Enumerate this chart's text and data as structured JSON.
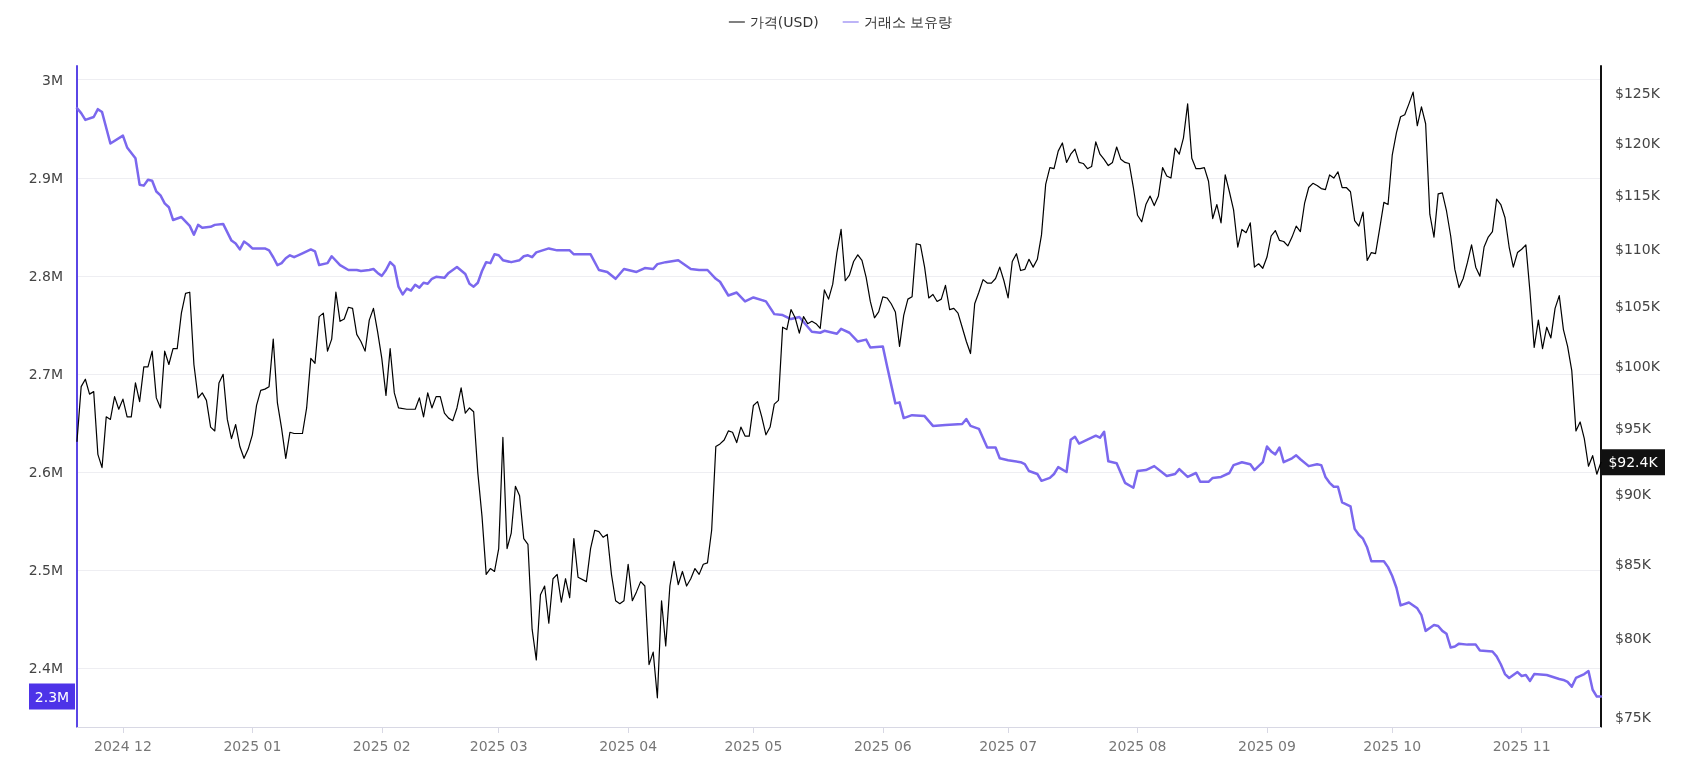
{
  "chart_data": {
    "type": "line",
    "xlim": [
      "2024-11-20",
      "2025-11-20"
    ],
    "xticks": [
      {
        "value": "2024-12-01",
        "label": "2024 12"
      },
      {
        "value": "2025-01-01",
        "label": "2025 01"
      },
      {
        "value": "2025-02-01",
        "label": "2025 02"
      },
      {
        "value": "2025-03-01",
        "label": "2025 03"
      },
      {
        "value": "2025-04-01",
        "label": "2025 04"
      },
      {
        "value": "2025-05-01",
        "label": "2025 05"
      },
      {
        "value": "2025-06-01",
        "label": "2025 06"
      },
      {
        "value": "2025-07-01",
        "label": "2025 07"
      },
      {
        "value": "2025-08-01",
        "label": "2025 08"
      },
      {
        "value": "2025-09-01",
        "label": "2025 09"
      },
      {
        "value": "2025-10-01",
        "label": "2025 10"
      },
      {
        "value": "2025-11-01",
        "label": "2025 11"
      }
    ],
    "ylim": [
      2340000,
      3014000
    ],
    "yticks": [
      {
        "value": 2400000,
        "label": "2.4M"
      },
      {
        "value": 2500000,
        "label": "2.5M"
      },
      {
        "value": 2600000,
        "label": "2.6M"
      },
      {
        "value": 2700000,
        "label": "2.7M"
      },
      {
        "value": 2800000,
        "label": "2.8M"
      },
      {
        "value": 2900000,
        "label": "2.9M"
      },
      {
        "value": 3000000,
        "label": "3M"
      }
    ],
    "y2lim": [
      74400,
      127800
    ],
    "y2ticks": [
      {
        "value": 75000,
        "label": "$75K"
      },
      {
        "value": 80000,
        "label": "$80K"
      },
      {
        "value": 85000,
        "label": "$85K"
      },
      {
        "value": 90000,
        "label": "$90K"
      },
      {
        "value": 95000,
        "label": "$95K"
      },
      {
        "value": 100000,
        "label": "$100K"
      },
      {
        "value": 105000,
        "label": "$105K"
      },
      {
        "value": 110000,
        "label": "$110K"
      },
      {
        "value": 115000,
        "label": "$115K"
      },
      {
        "value": 120000,
        "label": "$120K"
      },
      {
        "value": 125000,
        "label": "$125K"
      }
    ],
    "log": "y2",
    "grid": "y",
    "legend": "top",
    "marker": "none",
    "line_style": "solid",
    "annotations": [
      "2.3M",
      "$92.4K"
    ],
    "series": [
      {
        "name": "가격(USD)",
        "color": "#000000",
        "axis": "y2",
        "x": [
          "2024-11-20",
          "2024-11-21",
          "2024-11-22",
          "2024-11-23",
          "2024-11-24",
          "2024-11-25",
          "2024-11-26",
          "2024-11-27",
          "2024-11-28",
          "2024-11-29",
          "2024-11-30",
          "2024-12-01",
          "2024-12-02",
          "2024-12-03",
          "2024-12-04",
          "2024-12-05",
          "2024-12-06",
          "2024-12-07",
          "2024-12-08",
          "2024-12-09",
          "2024-12-10",
          "2024-12-11",
          "2024-12-12",
          "2024-12-13",
          "2024-12-14",
          "2024-12-15",
          "2024-12-16",
          "2024-12-17",
          "2024-12-18",
          "2024-12-19",
          "2024-12-20",
          "2024-12-21",
          "2024-12-22",
          "2024-12-23",
          "2024-12-24",
          "2024-12-25",
          "2024-12-26",
          "2024-12-27",
          "2024-12-28",
          "2024-12-29",
          "2024-12-30",
          "2024-12-31",
          "2025-01-01",
          "2025-01-02",
          "2025-01-03",
          "2025-01-04",
          "2025-01-05",
          "2025-01-06",
          "2025-01-07",
          "2025-01-08",
          "2025-01-09",
          "2025-01-10",
          "2025-01-11",
          "2025-01-12",
          "2025-01-13",
          "2025-01-14",
          "2025-01-15",
          "2025-01-16",
          "2025-01-17",
          "2025-01-18",
          "2025-01-19",
          "2025-01-20",
          "2025-01-21",
          "2025-01-22",
          "2025-01-23",
          "2025-01-24",
          "2025-01-25",
          "2025-01-26",
          "2025-01-27",
          "2025-01-28",
          "2025-01-29",
          "2025-01-30",
          "2025-01-31",
          "2025-02-01",
          "2025-02-02",
          "2025-02-03",
          "2025-02-04",
          "2025-02-05",
          "2025-02-07",
          "2025-02-09",
          "2025-02-10",
          "2025-02-11",
          "2025-02-12",
          "2025-02-13",
          "2025-02-14",
          "2025-02-15",
          "2025-02-16",
          "2025-02-17",
          "2025-02-18",
          "2025-02-19",
          "2025-02-20",
          "2025-02-21",
          "2025-02-22",
          "2025-02-23",
          "2025-02-24",
          "2025-02-25",
          "2025-02-26",
          "2025-02-27",
          "2025-02-28",
          "2025-03-01",
          "2025-03-02",
          "2025-03-03",
          "2025-03-04",
          "2025-03-05",
          "2025-03-06",
          "2025-03-07",
          "2025-03-08",
          "2025-03-09",
          "2025-03-10",
          "2025-03-11",
          "2025-03-12",
          "2025-03-13",
          "2025-03-14",
          "2025-03-15",
          "2025-03-16",
          "2025-03-17",
          "2025-03-18",
          "2025-03-19",
          "2025-03-20",
          "2025-03-22",
          "2025-03-23",
          "2025-03-24",
          "2025-03-25",
          "2025-03-26",
          "2025-03-27",
          "2025-03-28",
          "2025-03-29",
          "2025-03-30",
          "2025-03-31",
          "2025-04-01",
          "2025-04-02",
          "2025-04-03",
          "2025-04-04",
          "2025-04-05",
          "2025-04-06",
          "2025-04-07",
          "2025-04-08",
          "2025-04-09",
          "2025-04-10",
          "2025-04-11",
          "2025-04-12",
          "2025-04-13",
          "2025-04-14",
          "2025-04-15",
          "2025-04-16",
          "2025-04-17",
          "2025-04-18",
          "2025-04-19",
          "2025-04-20",
          "2025-04-21",
          "2025-04-22",
          "2025-04-23",
          "2025-04-24",
          "2025-04-25",
          "2025-04-26",
          "2025-04-27",
          "2025-04-28",
          "2025-04-29",
          "2025-04-30",
          "2025-05-01",
          "2025-05-02",
          "2025-05-03",
          "2025-05-04",
          "2025-05-05",
          "2025-05-06",
          "2025-05-07",
          "2025-05-08",
          "2025-05-09",
          "2025-05-10",
          "2025-05-11",
          "2025-05-12",
          "2025-05-13",
          "2025-05-14",
          "2025-05-15",
          "2025-05-16",
          "2025-05-17",
          "2025-05-18",
          "2025-05-19",
          "2025-05-20",
          "2025-05-21",
          "2025-05-22",
          "2025-05-23",
          "2025-05-24",
          "2025-05-25",
          "2025-05-26",
          "2025-05-27",
          "2025-05-28",
          "2025-05-29",
          "2025-05-30",
          "2025-05-31",
          "2025-06-01",
          "2025-06-02",
          "2025-06-03",
          "2025-06-04",
          "2025-06-05",
          "2025-06-06",
          "2025-06-07",
          "2025-06-08",
          "2025-06-09",
          "2025-06-10",
          "2025-06-11",
          "2025-06-12",
          "2025-06-13",
          "2025-06-14",
          "2025-06-15",
          "2025-06-16",
          "2025-06-17",
          "2025-06-18",
          "2025-06-19",
          "2025-06-20",
          "2025-06-21",
          "2025-06-22",
          "2025-06-23",
          "2025-06-24",
          "2025-06-25",
          "2025-06-26",
          "2025-06-27",
          "2025-06-28",
          "2025-06-29",
          "2025-06-30",
          "2025-07-01",
          "2025-07-02",
          "2025-07-03",
          "2025-07-04",
          "2025-07-05",
          "2025-07-06",
          "2025-07-07",
          "2025-07-08",
          "2025-07-09",
          "2025-07-10",
          "2025-07-11",
          "2025-07-12",
          "2025-07-13",
          "2025-07-14",
          "2025-07-15",
          "2025-07-16",
          "2025-07-17",
          "2025-07-18",
          "2025-07-19",
          "2025-07-20",
          "2025-07-21",
          "2025-07-22",
          "2025-07-23",
          "2025-07-24",
          "2025-07-25",
          "2025-07-26",
          "2025-07-27",
          "2025-07-28",
          "2025-07-29",
          "2025-07-30",
          "2025-07-31",
          "2025-08-01",
          "2025-08-02",
          "2025-08-03",
          "2025-08-04",
          "2025-08-05",
          "2025-08-06",
          "2025-08-07",
          "2025-08-08",
          "2025-08-09",
          "2025-08-10",
          "2025-08-11",
          "2025-08-12",
          "2025-08-13",
          "2025-08-14",
          "2025-08-15",
          "2025-08-16",
          "2025-08-17",
          "2025-08-18",
          "2025-08-19",
          "2025-08-20",
          "2025-08-21",
          "2025-08-22",
          "2025-08-23",
          "2025-08-24",
          "2025-08-25",
          "2025-08-26",
          "2025-08-27",
          "2025-08-28",
          "2025-08-29",
          "2025-08-30",
          "2025-08-31",
          "2025-09-01",
          "2025-09-02",
          "2025-09-03",
          "2025-09-04",
          "2025-09-05",
          "2025-09-06",
          "2025-09-07",
          "2025-09-08",
          "2025-09-09",
          "2025-09-10",
          "2025-09-11",
          "2025-09-12",
          "2025-09-13",
          "2025-09-14",
          "2025-09-15",
          "2025-09-16",
          "2025-09-17",
          "2025-09-18",
          "2025-09-19",
          "2025-09-20",
          "2025-09-21",
          "2025-09-22",
          "2025-09-23",
          "2025-09-24",
          "2025-09-25",
          "2025-09-26",
          "2025-09-27",
          "2025-09-28",
          "2025-09-29",
          "2025-09-30",
          "2025-10-01",
          "2025-10-02",
          "2025-10-03",
          "2025-10-04",
          "2025-10-05",
          "2025-10-06",
          "2025-10-07",
          "2025-10-08",
          "2025-10-09",
          "2025-10-10",
          "2025-10-11",
          "2025-10-12",
          "2025-10-13",
          "2025-10-14",
          "2025-10-15",
          "2025-10-16",
          "2025-10-17",
          "2025-10-18",
          "2025-10-19",
          "2025-10-20",
          "2025-10-21",
          "2025-10-22",
          "2025-10-23",
          "2025-10-24",
          "2025-10-25",
          "2025-10-26",
          "2025-10-27",
          "2025-10-28",
          "2025-10-29",
          "2025-10-30",
          "2025-10-31",
          "2025-11-01",
          "2025-11-02",
          "2025-11-03",
          "2025-11-04",
          "2025-11-05",
          "2025-11-06",
          "2025-11-07",
          "2025-11-08",
          "2025-11-09",
          "2025-11-10",
          "2025-11-11",
          "2025-11-12",
          "2025-11-13",
          "2025-11-14",
          "2025-11-15",
          "2025-11-16",
          "2025-11-17",
          "2025-11-18",
          "2025-11-19",
          "2025-11-20"
        ],
        "values": [
          94000,
          98300,
          98900,
          97700,
          97900,
          93000,
          92000,
          95900,
          95700,
          97500,
          96500,
          97300,
          95900,
          95900,
          98600,
          97100,
          99900,
          99900,
          101200,
          97400,
          96600,
          101200,
          100100,
          101400,
          101400,
          104400,
          106100,
          106200,
          100100,
          97400,
          97800,
          97200,
          95100,
          94800,
          98600,
          99300,
          95700,
          94200,
          95300,
          93600,
          92700,
          93400,
          94500,
          96800,
          98000,
          98100,
          98300,
          102200,
          97000,
          95000,
          92700,
          94700,
          94600,
          94600,
          94600,
          96600,
          100600,
          100200,
          104100,
          104400,
          101200,
          102200,
          106200,
          103700,
          103900,
          104900,
          104800,
          102600,
          102000,
          101200,
          103800,
          104800,
          102800,
          100600,
          97600,
          101400,
          97800,
          96600,
          96500,
          96500,
          97400,
          95900,
          97800,
          96600,
          97500,
          97500,
          96200,
          95800,
          95600,
          96600,
          98200,
          96200,
          96600,
          96300,
          91600,
          88400,
          84300,
          84700,
          84500,
          86100,
          94300,
          86100,
          87200,
          90600,
          89900,
          86800,
          86400,
          80600,
          78600,
          82900,
          83500,
          81000,
          84000,
          84300,
          82400,
          84000,
          82700,
          86800,
          84100,
          83800,
          86100,
          87400,
          87300,
          86900,
          87100,
          84300,
          82500,
          82300,
          82500,
          85000,
          82500,
          83100,
          83800,
          83500,
          78300,
          79100,
          76200,
          82500,
          79500,
          83500,
          85200,
          83600,
          84500,
          83500,
          84000,
          84700,
          84300,
          85000,
          85100,
          87400,
          93600,
          93800,
          94100,
          94800,
          94700,
          93900,
          95100,
          94400,
          94400,
          96800,
          97100,
          95900,
          94500,
          95100,
          96900,
          97200,
          103200,
          103000,
          104700,
          104000,
          102700,
          104100,
          103500,
          103700,
          103500,
          103100,
          106400,
          105600,
          106900,
          109700,
          111800,
          107200,
          107700,
          108900,
          109500,
          109000,
          107500,
          105400,
          104000,
          104500,
          105800,
          105700,
          105200,
          104500,
          101600,
          104200,
          105600,
          105800,
          110500,
          110400,
          108400,
          105700,
          106000,
          105400,
          105600,
          106800,
          104700,
          104800,
          104400,
          103200,
          102000,
          101000,
          105200,
          106200,
          107300,
          107000,
          107000,
          107400,
          108400,
          107200,
          105700,
          108900,
          109600,
          108100,
          108200,
          109100,
          108400,
          109100,
          111300,
          116000,
          117600,
          117500,
          119200,
          120000,
          118100,
          118900,
          119400,
          118100,
          118000,
          117500,
          117700,
          120100,
          118900,
          118400,
          117800,
          118100,
          119600,
          118400,
          118100,
          118000,
          115700,
          113100,
          112500,
          114100,
          114900,
          114000,
          114900,
          117600,
          116800,
          116600,
          119500,
          118900,
          120500,
          123900,
          118500,
          117500,
          117500,
          117600,
          116300,
          112800,
          114100,
          112400,
          116900,
          115300,
          113600,
          110200,
          111800,
          111500,
          112400,
          108400,
          108700,
          108300,
          109300,
          111200,
          111700,
          110800,
          110700,
          110300,
          111100,
          112100,
          111600,
          114200,
          115700,
          116100,
          115900,
          115600,
          115500,
          116900,
          116600,
          117200,
          115700,
          115700,
          115300,
          112600,
          112100,
          113400,
          109000,
          109700,
          109600,
          111900,
          114300,
          114100,
          118800,
          121000,
          122600,
          122800,
          123900,
          125100,
          121700,
          123600,
          121900,
          113200,
          111100,
          115100,
          115200,
          113500,
          111200,
          108200,
          106600,
          107400,
          108800,
          110400,
          108400,
          107600,
          110200,
          111100,
          111600,
          114600,
          114100,
          112900,
          110200,
          108400,
          109700,
          110000,
          110400,
          106200,
          101500,
          103800,
          101400,
          103200,
          102300,
          104800,
          105900,
          103000,
          101600,
          99600,
          94800,
          95500,
          94200,
          92100,
          92900,
          91500,
          92400
        ]
      },
      {
        "name": "거래소 보유량",
        "color": "#7b68ee",
        "axis": "y",
        "x": [
          "2024-11-20",
          "2024-11-21",
          "2024-11-22",
          "2024-11-24",
          "2024-11-25",
          "2024-11-26",
          "2024-11-28",
          "2024-12-01",
          "2024-12-02",
          "2024-12-04",
          "2024-12-05",
          "2024-12-06",
          "2024-12-07",
          "2024-12-08",
          "2024-12-09",
          "2024-12-10",
          "2024-12-11",
          "2024-12-12",
          "2024-12-13",
          "2024-12-15",
          "2024-12-17",
          "2024-12-18",
          "2024-12-19",
          "2024-12-20",
          "2024-12-22",
          "2024-12-23",
          "2024-12-25",
          "2024-12-27",
          "2024-12-28",
          "2024-12-29",
          "2024-12-30",
          "2024-12-31",
          "2025-01-01",
          "2025-01-04",
          "2025-01-05",
          "2025-01-06",
          "2025-01-07",
          "2025-01-08",
          "2025-01-09",
          "2025-01-10",
          "2025-01-11",
          "2025-01-13",
          "2025-01-15",
          "2025-01-16",
          "2025-01-17",
          "2025-01-19",
          "2025-01-20",
          "2025-01-22",
          "2025-01-24",
          "2025-01-26",
          "2025-01-27",
          "2025-01-29",
          "2025-01-30",
          "2025-01-31",
          "2025-02-01",
          "2025-02-02",
          "2025-02-03",
          "2025-02-04",
          "2025-02-05",
          "2025-02-06",
          "2025-02-07",
          "2025-02-08",
          "2025-02-09",
          "2025-02-10",
          "2025-02-11",
          "2025-02-12",
          "2025-02-13",
          "2025-02-14",
          "2025-02-16",
          "2025-02-17",
          "2025-02-19",
          "2025-02-21",
          "2025-02-22",
          "2025-02-23",
          "2025-02-24",
          "2025-02-25",
          "2025-02-26",
          "2025-02-27",
          "2025-02-28",
          "2025-03-01",
          "2025-03-02",
          "2025-03-04",
          "2025-03-06",
          "2025-03-07",
          "2025-03-08",
          "2025-03-09",
          "2025-03-10",
          "2025-03-13",
          "2025-03-15",
          "2025-03-18",
          "2025-03-19",
          "2025-03-23",
          "2025-03-25",
          "2025-03-27",
          "2025-03-29",
          "2025-03-31",
          "2025-04-03",
          "2025-04-05",
          "2025-04-07",
          "2025-04-08",
          "2025-04-10",
          "2025-04-13",
          "2025-04-16",
          "2025-04-18",
          "2025-04-20",
          "2025-04-22",
          "2025-04-23",
          "2025-04-25",
          "2025-04-27",
          "2025-04-29",
          "2025-05-01",
          "2025-05-04",
          "2025-05-06",
          "2025-05-08",
          "2025-05-10",
          "2025-05-12",
          "2025-05-15",
          "2025-05-17",
          "2025-05-18",
          "2025-05-21",
          "2025-05-22",
          "2025-05-24",
          "2025-05-26",
          "2025-05-28",
          "2025-05-29",
          "2025-06-01",
          "2025-06-02",
          "2025-06-04",
          "2025-06-05",
          "2025-06-06",
          "2025-06-08",
          "2025-06-11",
          "2025-06-13",
          "2025-06-16",
          "2025-06-20",
          "2025-06-21",
          "2025-06-22",
          "2025-06-24",
          "2025-06-26",
          "2025-06-28",
          "2025-06-29",
          "2025-07-01",
          "2025-07-04",
          "2025-07-05",
          "2025-07-06",
          "2025-07-08",
          "2025-07-09",
          "2025-07-11",
          "2025-07-12",
          "2025-07-13",
          "2025-07-15",
          "2025-07-16",
          "2025-07-17",
          "2025-07-18",
          "2025-07-20",
          "2025-07-22",
          "2025-07-23",
          "2025-07-24",
          "2025-07-25",
          "2025-07-27",
          "2025-07-29",
          "2025-07-31",
          "2025-08-01",
          "2025-08-03",
          "2025-08-05",
          "2025-08-08",
          "2025-08-10",
          "2025-08-11",
          "2025-08-13",
          "2025-08-15",
          "2025-08-16",
          "2025-08-18",
          "2025-08-19",
          "2025-08-21",
          "2025-08-23",
          "2025-08-24",
          "2025-08-26",
          "2025-08-28",
          "2025-08-29",
          "2025-08-31",
          "2025-09-01",
          "2025-09-02",
          "2025-09-03",
          "2025-09-04",
          "2025-09-05",
          "2025-09-07",
          "2025-09-08",
          "2025-09-09",
          "2025-09-11",
          "2025-09-13",
          "2025-09-14",
          "2025-09-15",
          "2025-09-16",
          "2025-09-17",
          "2025-09-18",
          "2025-09-19",
          "2025-09-21",
          "2025-09-22",
          "2025-09-23",
          "2025-09-24",
          "2025-09-25",
          "2025-09-26",
          "2025-09-29",
          "2025-09-30",
          "2025-10-01",
          "2025-10-02",
          "2025-10-03",
          "2025-10-05",
          "2025-10-07",
          "2025-10-08",
          "2025-10-09",
          "2025-10-10",
          "2025-10-11",
          "2025-10-12",
          "2025-10-13",
          "2025-10-14",
          "2025-10-15",
          "2025-10-16",
          "2025-10-17",
          "2025-10-19",
          "2025-10-21",
          "2025-10-22",
          "2025-10-25",
          "2025-10-26",
          "2025-10-27",
          "2025-10-28",
          "2025-10-29",
          "2025-10-31",
          "2025-11-01",
          "2025-11-02",
          "2025-11-03",
          "2025-11-04",
          "2025-11-07",
          "2025-11-10",
          "2025-11-11",
          "2025-11-12",
          "2025-11-13",
          "2025-11-14",
          "2025-11-16",
          "2025-11-17",
          "2025-11-18",
          "2025-11-19",
          "2025-11-20"
        ],
        "values": [
          2971000,
          2966000,
          2959000,
          2962000,
          2970000,
          2967000,
          2935000,
          2943000,
          2931000,
          2920000,
          2893000,
          2892000,
          2898000,
          2897000,
          2886000,
          2882000,
          2874000,
          2870000,
          2857000,
          2860000,
          2851000,
          2842000,
          2852000,
          2849000,
          2850000,
          2852000,
          2853000,
          2836000,
          2833000,
          2827000,
          2835000,
          2832000,
          2828000,
          2828000,
          2826000,
          2819000,
          2811000,
          2813000,
          2818000,
          2821000,
          2819000,
          2823000,
          2827000,
          2825000,
          2811000,
          2813000,
          2820000,
          2811000,
          2806000,
          2806000,
          2805000,
          2806000,
          2807000,
          2803000,
          2800000,
          2806000,
          2814000,
          2810000,
          2789000,
          2781000,
          2787000,
          2785000,
          2791000,
          2788000,
          2793000,
          2792000,
          2797000,
          2799000,
          2798000,
          2803000,
          2809000,
          2802000,
          2792000,
          2789000,
          2793000,
          2805000,
          2814000,
          2813000,
          2822000,
          2821000,
          2816000,
          2814000,
          2816000,
          2820000,
          2821000,
          2819000,
          2824000,
          2828000,
          2826000,
          2826000,
          2822000,
          2822000,
          2806000,
          2804000,
          2797000,
          2807000,
          2804000,
          2808000,
          2807000,
          2812000,
          2814000,
          2816000,
          2807000,
          2806000,
          2806000,
          2797000,
          2794000,
          2780000,
          2783000,
          2774000,
          2778000,
          2774000,
          2761000,
          2760000,
          2756000,
          2758000,
          2743000,
          2742000,
          2744000,
          2741000,
          2746000,
          2742000,
          2733000,
          2735000,
          2727000,
          2728000,
          2708000,
          2670000,
          2671000,
          2655000,
          2658000,
          2657000,
          2647000,
          2648000,
          2649000,
          2654000,
          2647000,
          2644000,
          2625000,
          2625000,
          2614000,
          2612000,
          2610000,
          2608000,
          2601000,
          2598000,
          2591000,
          2594000,
          2598000,
          2605000,
          2600000,
          2633000,
          2636000,
          2629000,
          2633000,
          2637000,
          2635000,
          2641000,
          2611000,
          2609000,
          2589000,
          2584000,
          2601000,
          2602000,
          2606000,
          2596000,
          2598000,
          2603000,
          2595000,
          2599000,
          2590000,
          2590000,
          2594000,
          2595000,
          2599000,
          2607000,
          2610000,
          2608000,
          2602000,
          2610000,
          2626000,
          2621000,
          2618000,
          2625000,
          2610000,
          2614000,
          2617000,
          2613000,
          2606000,
          2608000,
          2607000,
          2595000,
          2589000,
          2585000,
          2585000,
          2569000,
          2565000,
          2542000,
          2536000,
          2532000,
          2523000,
          2509000,
          2509000,
          2503000,
          2494000,
          2482000,
          2464000,
          2467000,
          2461000,
          2454000,
          2438000,
          2441000,
          2444000,
          2443000,
          2438000,
          2435000,
          2421000,
          2422000,
          2425000,
          2424000,
          2424000,
          2418000,
          2417000,
          2412000,
          2404000,
          2394000,
          2390000,
          2396000,
          2392000,
          2393000,
          2387000,
          2394000,
          2393000,
          2389000,
          2388000,
          2386000,
          2381000,
          2390000,
          2394000,
          2397000,
          2378000,
          2371000,
          2371000
        ]
      }
    ]
  }
}
